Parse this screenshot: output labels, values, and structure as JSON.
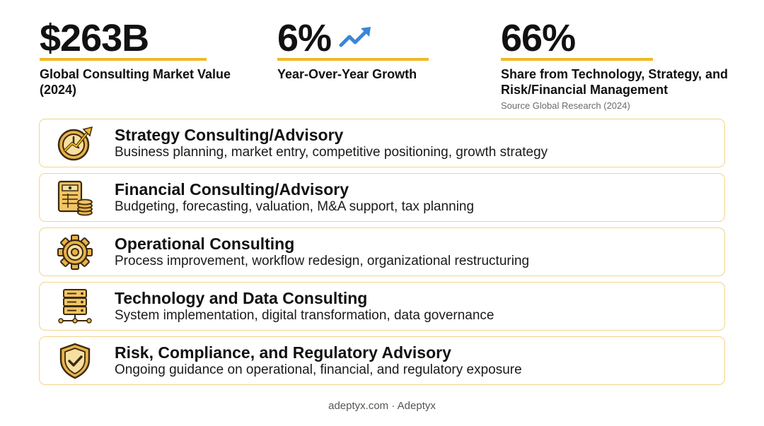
{
  "stats": [
    {
      "value": "$263B",
      "label": "Global Consulting Market Value (2024)"
    },
    {
      "value": "6%",
      "label": "Year-Over-Year Growth",
      "icon": "trend-up-icon"
    },
    {
      "value": "66%",
      "label": "Share from Technology, Strategy, and Risk/Financial Management",
      "source": "Source Global Research (2024)"
    }
  ],
  "services": [
    {
      "icon": "strategy-clock-icon",
      "title": "Strategy Consulting/Advisory",
      "description": "Business planning, market entry, competitive positioning, growth strategy"
    },
    {
      "icon": "financial-ledger-icon",
      "title": "Financial Consulting/Advisory",
      "description": "Budgeting, forecasting, valuation, M&A support, tax planning"
    },
    {
      "icon": "gear-icon",
      "title": "Operational Consulting",
      "description": "Process improvement, workflow redesign, organizational restructuring"
    },
    {
      "icon": "server-network-icon",
      "title": "Technology and Data Consulting",
      "description": "System implementation, digital transformation, data governance"
    },
    {
      "icon": "shield-check-icon",
      "title": "Risk, Compliance, and Regulatory Advisory",
      "description": "Ongoing guidance on operational, financial, and regulatory exposure"
    }
  ],
  "footer": "adeptyx.com · Adeptyx",
  "colors": {
    "accent": "#f2b822",
    "card_border": "#f3d58a",
    "icon_gold": "#d9a53b",
    "trend_blue": "#3a86d8"
  }
}
